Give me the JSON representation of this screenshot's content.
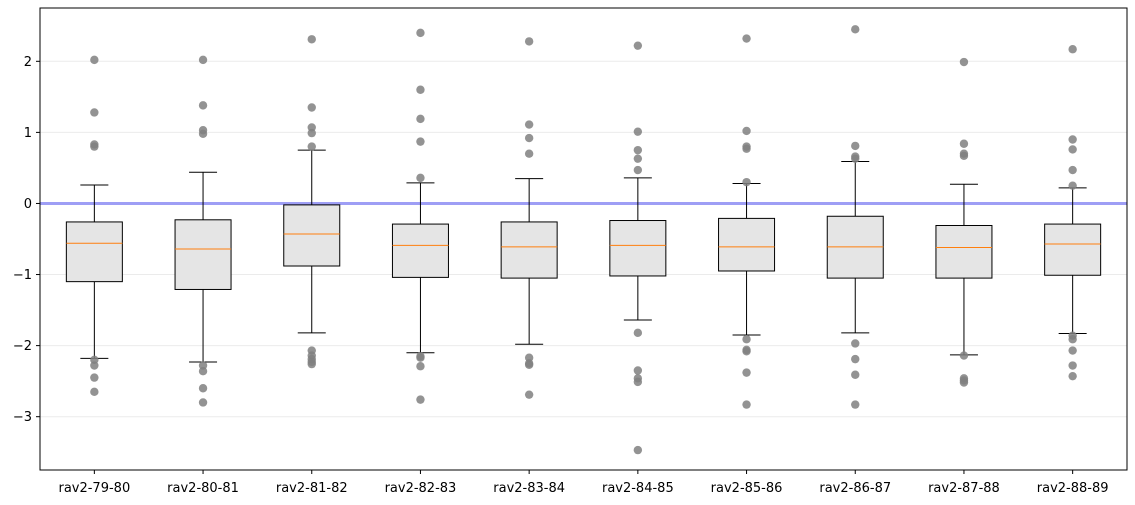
{
  "chart_data": {
    "type": "box",
    "title": "",
    "xlabel": "",
    "ylabel": "",
    "ylim": [
      -3.75,
      2.75
    ],
    "yticks": [
      2,
      1,
      0,
      -1,
      -2,
      -3
    ],
    "ytick_labels": [
      "2",
      "1",
      "0",
      "−1",
      "−2",
      "−3"
    ],
    "grid": "horizontal",
    "reference_line": {
      "y": 0,
      "color": "#9e9ef5"
    },
    "colors": {
      "box_fill": "#e5e5e5",
      "median": "#ff7f0e",
      "outlier": "#808080",
      "grid": "#ebebeb"
    },
    "categories": [
      "rav2-79-80",
      "rav2-80-81",
      "rav2-81-82",
      "rav2-82-83",
      "rav2-83-84",
      "rav2-84-85",
      "rav2-85-86",
      "rav2-86-87",
      "rav2-87-88",
      "rav2-88-89"
    ],
    "boxes": [
      {
        "q1": -1.1,
        "median": -0.56,
        "q3": -0.26,
        "whisker_low": -2.18,
        "whisker_high": 0.26,
        "outliers": [
          2.02,
          1.28,
          0.83,
          0.8,
          -2.2,
          -2.28,
          -2.45,
          -2.65
        ]
      },
      {
        "q1": -1.21,
        "median": -0.64,
        "q3": -0.23,
        "whisker_low": -2.23,
        "whisker_high": 0.44,
        "outliers": [
          2.02,
          1.38,
          1.03,
          0.98,
          -2.28,
          -2.36,
          -2.6,
          -2.8
        ]
      },
      {
        "q1": -0.88,
        "median": -0.43,
        "q3": -0.02,
        "whisker_low": -1.82,
        "whisker_high": 0.75,
        "outliers": [
          2.31,
          1.35,
          1.07,
          0.99,
          0.8,
          -2.07,
          -2.14,
          -2.19,
          -2.23,
          -2.26
        ]
      },
      {
        "q1": -1.04,
        "median": -0.59,
        "q3": -0.29,
        "whisker_low": -2.1,
        "whisker_high": 0.29,
        "outliers": [
          2.4,
          1.6,
          1.19,
          0.87,
          0.36,
          -2.15,
          -2.17,
          -2.29,
          -2.76
        ]
      },
      {
        "q1": -1.05,
        "median": -0.61,
        "q3": -0.26,
        "whisker_low": -1.98,
        "whisker_high": 0.35,
        "outliers": [
          2.28,
          1.11,
          0.92,
          0.7,
          -2.17,
          -2.25,
          -2.27,
          -2.69
        ]
      },
      {
        "q1": -1.02,
        "median": -0.59,
        "q3": -0.24,
        "whisker_low": -1.64,
        "whisker_high": 0.36,
        "outliers": [
          2.22,
          1.01,
          0.75,
          0.63,
          0.47,
          -1.82,
          -2.35,
          -2.46,
          -2.51,
          -3.47
        ]
      },
      {
        "q1": -0.95,
        "median": -0.61,
        "q3": -0.21,
        "whisker_low": -1.85,
        "whisker_high": 0.28,
        "outliers": [
          2.32,
          1.02,
          0.8,
          0.77,
          0.3,
          -1.91,
          -2.06,
          -2.08,
          -2.38,
          -2.83
        ]
      },
      {
        "q1": -1.05,
        "median": -0.61,
        "q3": -0.18,
        "whisker_low": -1.82,
        "whisker_high": 0.59,
        "outliers": [
          2.45,
          0.81,
          0.66,
          0.63,
          -1.97,
          -2.19,
          -2.41,
          -2.83
        ]
      },
      {
        "q1": -1.05,
        "median": -0.62,
        "q3": -0.31,
        "whisker_low": -2.13,
        "whisker_high": 0.27,
        "outliers": [
          1.99,
          0.84,
          0.7,
          0.67,
          -2.14,
          -2.46,
          -2.49,
          -2.52
        ]
      },
      {
        "q1": -1.01,
        "median": -0.57,
        "q3": -0.29,
        "whisker_low": -1.83,
        "whisker_high": 0.22,
        "outliers": [
          2.17,
          0.9,
          0.76,
          0.47,
          0.25,
          -1.86,
          -1.91,
          -2.07,
          -2.28,
          -2.43
        ]
      }
    ]
  }
}
